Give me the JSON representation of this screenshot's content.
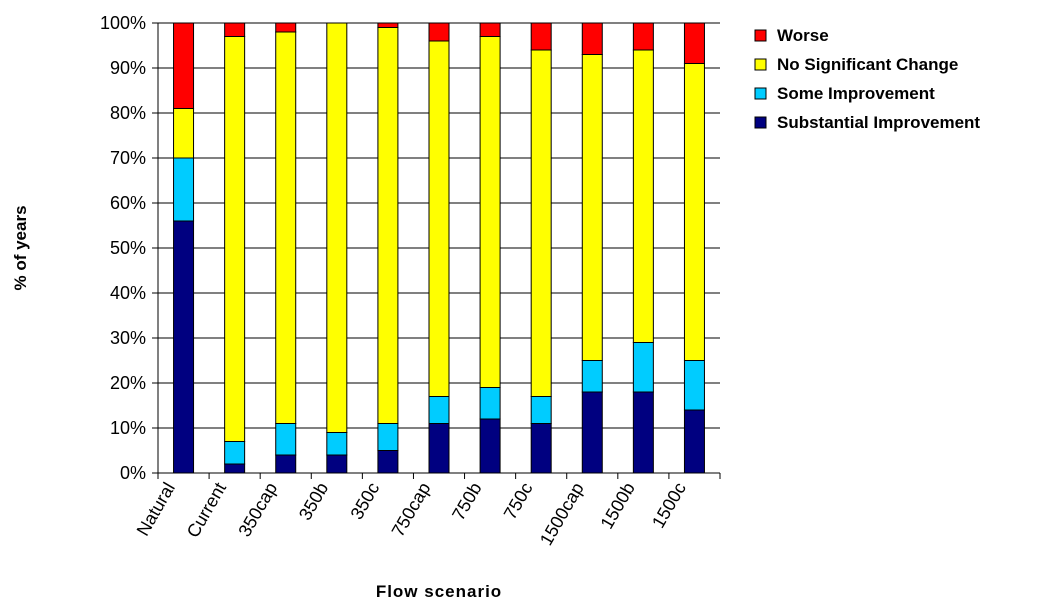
{
  "chart_data": {
    "type": "bar",
    "stacked": true,
    "percent_stacked": true,
    "categories": [
      "Natural",
      "Current",
      "350cap",
      "350b",
      "350c",
      "750cap",
      "750b",
      "750c",
      "1500cap",
      "1500b",
      "1500c"
    ],
    "series": [
      {
        "name": "Substantial Improvement",
        "color": "#000080",
        "values": [
          56,
          2,
          4,
          4,
          5,
          11,
          12,
          11,
          18,
          18,
          14
        ]
      },
      {
        "name": "Some Improvement",
        "color": "#00CCFF",
        "values": [
          14,
          5,
          7,
          5,
          6,
          6,
          7,
          6,
          7,
          11,
          11
        ]
      },
      {
        "name": "No Significant Change",
        "color": "#FFFF00",
        "values": [
          11,
          90,
          87,
          91,
          88,
          79,
          78,
          77,
          68,
          65,
          66
        ]
      },
      {
        "name": "Worse",
        "color": "#FF0000",
        "values": [
          19,
          3,
          2,
          0,
          1,
          4,
          3,
          6,
          7,
          6,
          9
        ]
      }
    ],
    "legend_order": [
      "Worse",
      "No Significant Change",
      "Some Improvement",
      "Substantial Improvement"
    ],
    "legend_position": "top-right",
    "xlabel": "Flow scenario",
    "ylabel": "% of years",
    "ylim": [
      0,
      100
    ],
    "y_ticks": [
      "0%",
      "10%",
      "20%",
      "30%",
      "40%",
      "50%",
      "60%",
      "70%",
      "80%",
      "90%",
      "100%"
    ],
    "grid": "horizontal"
  }
}
